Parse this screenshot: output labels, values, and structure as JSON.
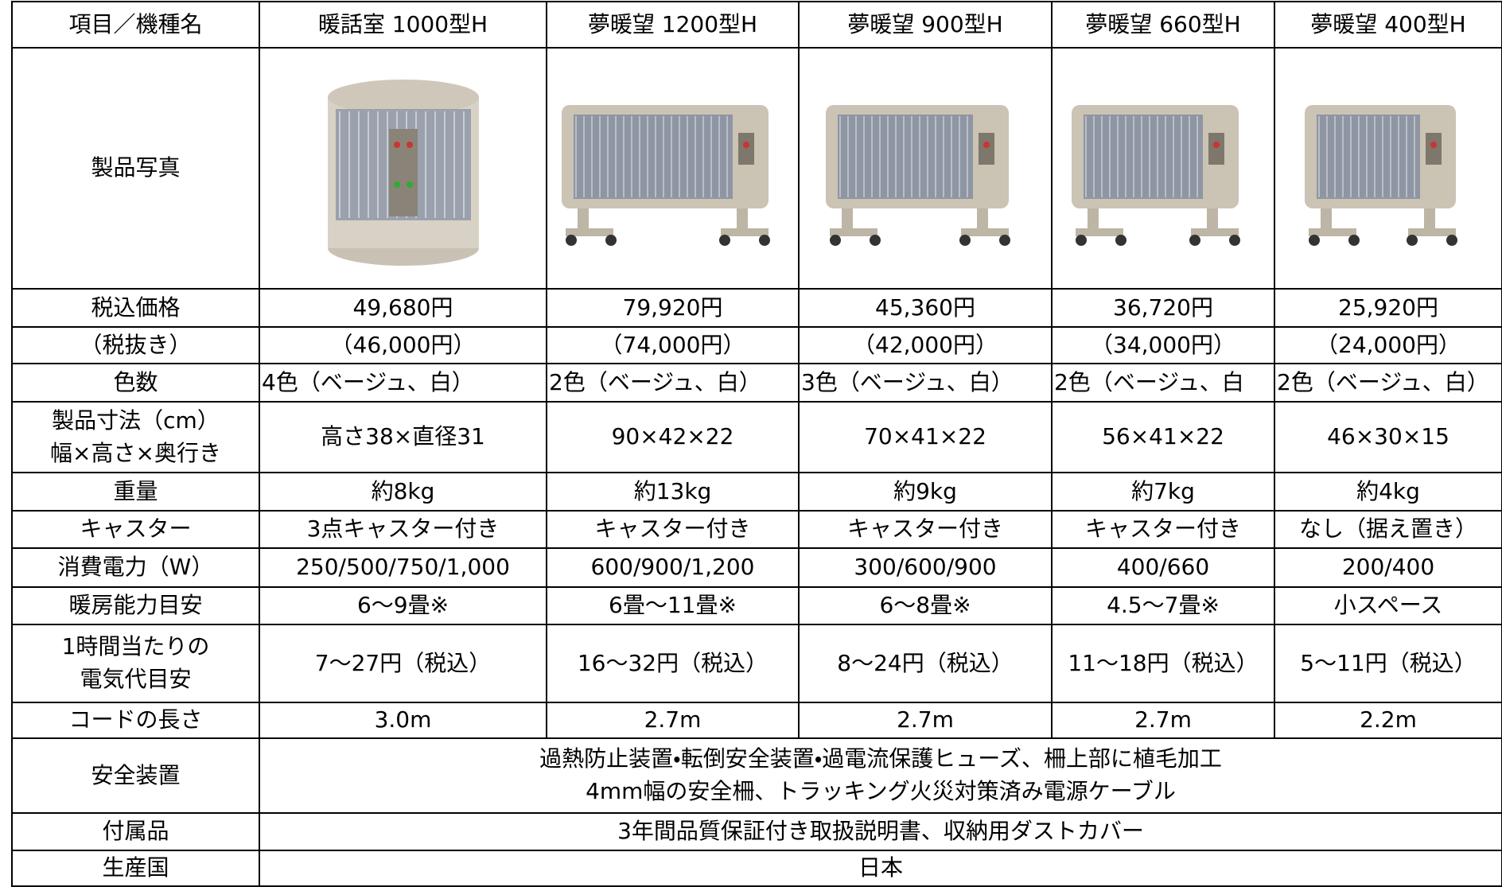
{
  "table": {
    "header": [
      "項目／機種名",
      "暖話室 1000型H",
      "夢暖望 1200型H",
      "夢暖望 900型H",
      "夢暖望 660型H",
      "夢暖望 400型H"
    ],
    "rows": [
      {
        "label": "製品写真"
      },
      {
        "label": "税込価格",
        "cells": [
          "49,680円",
          "79,920円",
          "45,360円",
          "36,720円",
          "25,920円"
        ]
      },
      {
        "label": "（税抜き）",
        "cells": [
          "（46,000円）",
          "（74,000円）",
          "（42,000円）",
          "（34,000円）",
          "（24,000円）"
        ]
      },
      {
        "label": "色数",
        "cells": [
          "4色（ベージュ、白）",
          "2色（ベージュ、白）",
          "3色（ベージュ、白）",
          "2色（ベージュ、白",
          "2色（ベージュ、白）"
        ],
        "align": "left"
      },
      {
        "label": [
          "製品寸法（cm）",
          "幅×高さ×奥行き"
        ],
        "cells": [
          "高さ38×直径31",
          "90×42×22",
          "70×41×22",
          "56×41×22",
          "46×30×15"
        ]
      },
      {
        "label": "重量",
        "cells": [
          "約8kg",
          "約13kg",
          "約9kg",
          "約7kg",
          "約4kg"
        ]
      },
      {
        "label": "キャスター",
        "cells": [
          "3点キャスター付き",
          "キャスター付き",
          "キャスター付き",
          "キャスター付き",
          "なし（据え置き）"
        ]
      },
      {
        "label": "消費電力（W）",
        "cells": [
          "250/500/750/1,000",
          "600/900/1,200",
          "300/600/900",
          "400/660",
          "200/400"
        ]
      },
      {
        "label": "暖房能力目安",
        "cells": [
          "6～9畳※",
          "6畳～11畳※",
          "6～8畳※",
          "4.5～7畳※",
          "小スペース"
        ]
      },
      {
        "label": [
          "1時間当たりの",
          "電気代目安"
        ],
        "cells": [
          "7～27円（税込）",
          "16～32円（税込）",
          "8～24円（税込）",
          "11～18円（税込）",
          "5～11円（税込）"
        ]
      },
      {
        "label": "コードの長さ",
        "cells": [
          "3.0m",
          "2.7m",
          "2.7m",
          "2.7m",
          "2.2m"
        ]
      },
      {
        "label": "安全装置",
        "merged": [
          "過熱防止装置・転倒安全装置・過電流保護ヒューズ、柵上部に植毛加工",
          "4mm幅の安全柵、トラッキング火災対策済み電源ケーブル"
        ]
      },
      {
        "label": "付属品",
        "merged": "3年間品質保証付き取扱説明書、収納用ダストカバー"
      },
      {
        "label": "生産国",
        "merged": "日本"
      }
    ]
  }
}
